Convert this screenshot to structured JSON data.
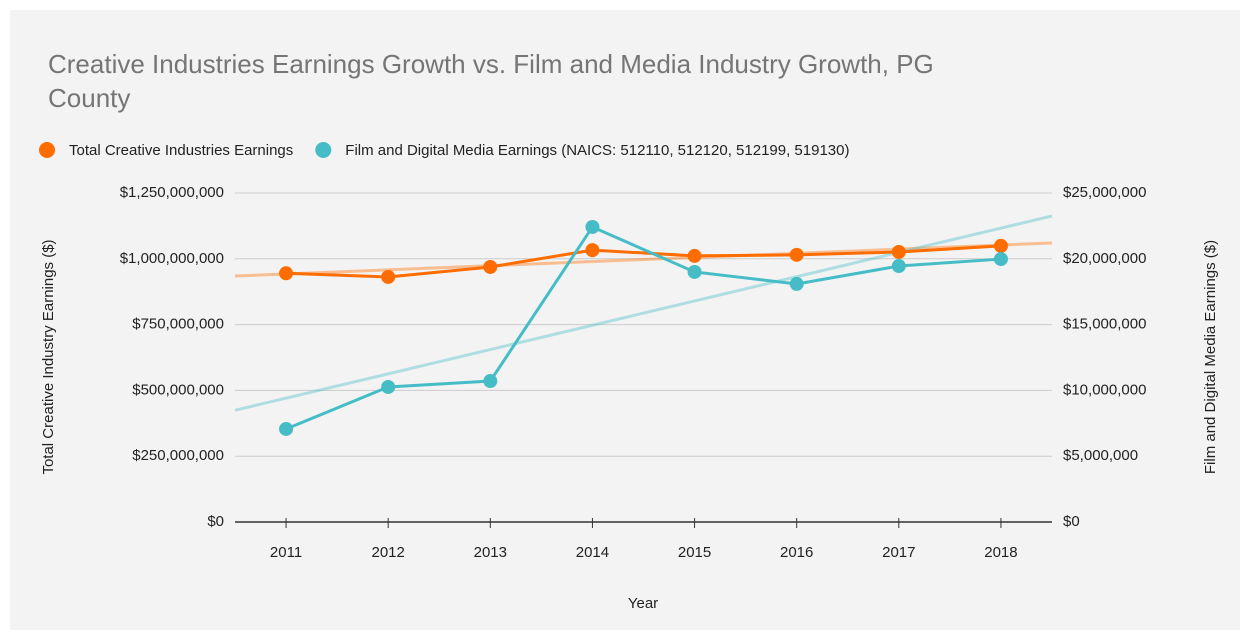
{
  "chart_data": {
    "type": "line",
    "title": "Creative Industries Earnings Growth vs. Film and Media Industry Growth, PG County",
    "xlabel": "Year",
    "ylabel": "Total Creative Industry Earnings ($)",
    "y2label": "Film and Digital Media Earnings ($)",
    "categories": [
      "2011",
      "2012",
      "2013",
      "2014",
      "2015",
      "2016",
      "2017",
      "2018"
    ],
    "series": [
      {
        "name": "Total Creative Industries Earnings",
        "color": "#ff6d00",
        "axis": "y",
        "values": [
          945000000,
          931000000,
          969000000,
          1033000000,
          1011000000,
          1015000000,
          1026000000,
          1049000000
        ]
      },
      {
        "name": "Film and Digital Media Earnings (NAICS: 512110, 512120, 512199, 519130)",
        "color": "#46bdc6",
        "axis": "y2",
        "values": [
          7070000,
          10260000,
          10710000,
          22420000,
          19000000,
          18090000,
          19450000,
          19980000
        ]
      }
    ],
    "ylim": [
      0,
      1250000000
    ],
    "yticks": [
      {
        "value": 0,
        "label": "$0"
      },
      {
        "value": 250000000,
        "label": "$250,000,000"
      },
      {
        "value": 500000000,
        "label": "$500,000,000"
      },
      {
        "value": 750000000,
        "label": "$750,000,000"
      },
      {
        "value": 1000000000,
        "label": "$1,000,000,000"
      },
      {
        "value": 1250000000,
        "label": "$1,250,000,000"
      }
    ],
    "y2lim": [
      0,
      25000000
    ],
    "y2ticks": [
      {
        "value": 0,
        "label": "$0"
      },
      {
        "value": 5000000,
        "label": "$5,000,000"
      },
      {
        "value": 10000000,
        "label": "$10,000,000"
      },
      {
        "value": 15000000,
        "label": "$15,000,000"
      },
      {
        "value": 20000000,
        "label": "$20,000,000"
      },
      {
        "value": 25000000,
        "label": "$25,000,000"
      }
    ],
    "grid": true,
    "trendline": true,
    "legend": "top"
  }
}
